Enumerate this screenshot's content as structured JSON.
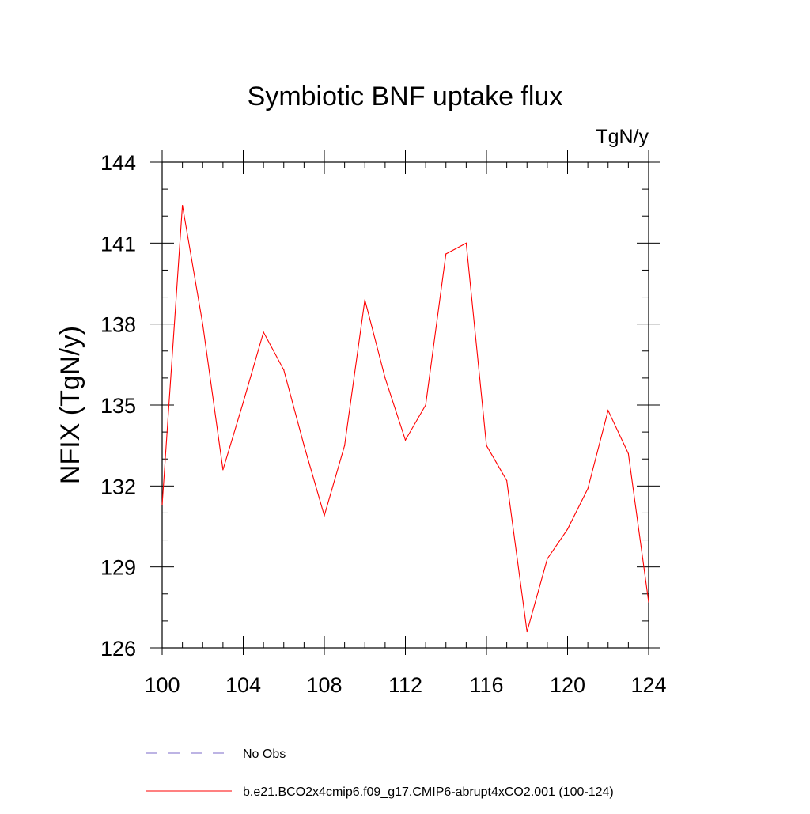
{
  "chart_data": {
    "type": "line",
    "title": "Symbiotic BNF uptake flux",
    "units_label": "TgN/y",
    "ylabel": "NFIX  (TgN/y)",
    "xlabel": "",
    "xlim": [
      100,
      124
    ],
    "ylim": [
      126,
      144
    ],
    "x_ticks": [
      100,
      104,
      108,
      112,
      116,
      120,
      124
    ],
    "y_ticks": [
      126,
      129,
      132,
      135,
      138,
      141,
      144
    ],
    "x_minor_step": 1,
    "y_minor_step": 1,
    "grid": false,
    "legend_position": "bottom",
    "x": [
      100,
      101,
      102,
      103,
      104,
      105,
      106,
      107,
      108,
      109,
      110,
      111,
      112,
      113,
      114,
      115,
      116,
      117,
      118,
      119,
      120,
      121,
      122,
      123,
      124
    ],
    "series": [
      {
        "name": "b.e21.BCO2x4cmip6.f09_g17.CMIP6-abrupt4xCO2.001 (100-124)",
        "color": "#ff0000",
        "dash": "solid",
        "values": [
          131.3,
          142.4,
          138.0,
          132.6,
          135.1,
          137.7,
          136.3,
          133.5,
          130.9,
          133.5,
          138.9,
          136.0,
          133.7,
          135.0,
          140.6,
          141.0,
          133.5,
          132.2,
          126.6,
          129.3,
          130.4,
          131.9,
          134.8,
          133.2,
          127.7
        ]
      }
    ],
    "legend": [
      {
        "label": "No Obs",
        "color": "#7b68c8",
        "dash": "dashed"
      },
      {
        "label": "b.e21.BCO2x4cmip6.f09_g17.CMIP6-abrupt4xCO2.001 (100-124)",
        "color": "#ff0000",
        "dash": "solid"
      }
    ]
  }
}
